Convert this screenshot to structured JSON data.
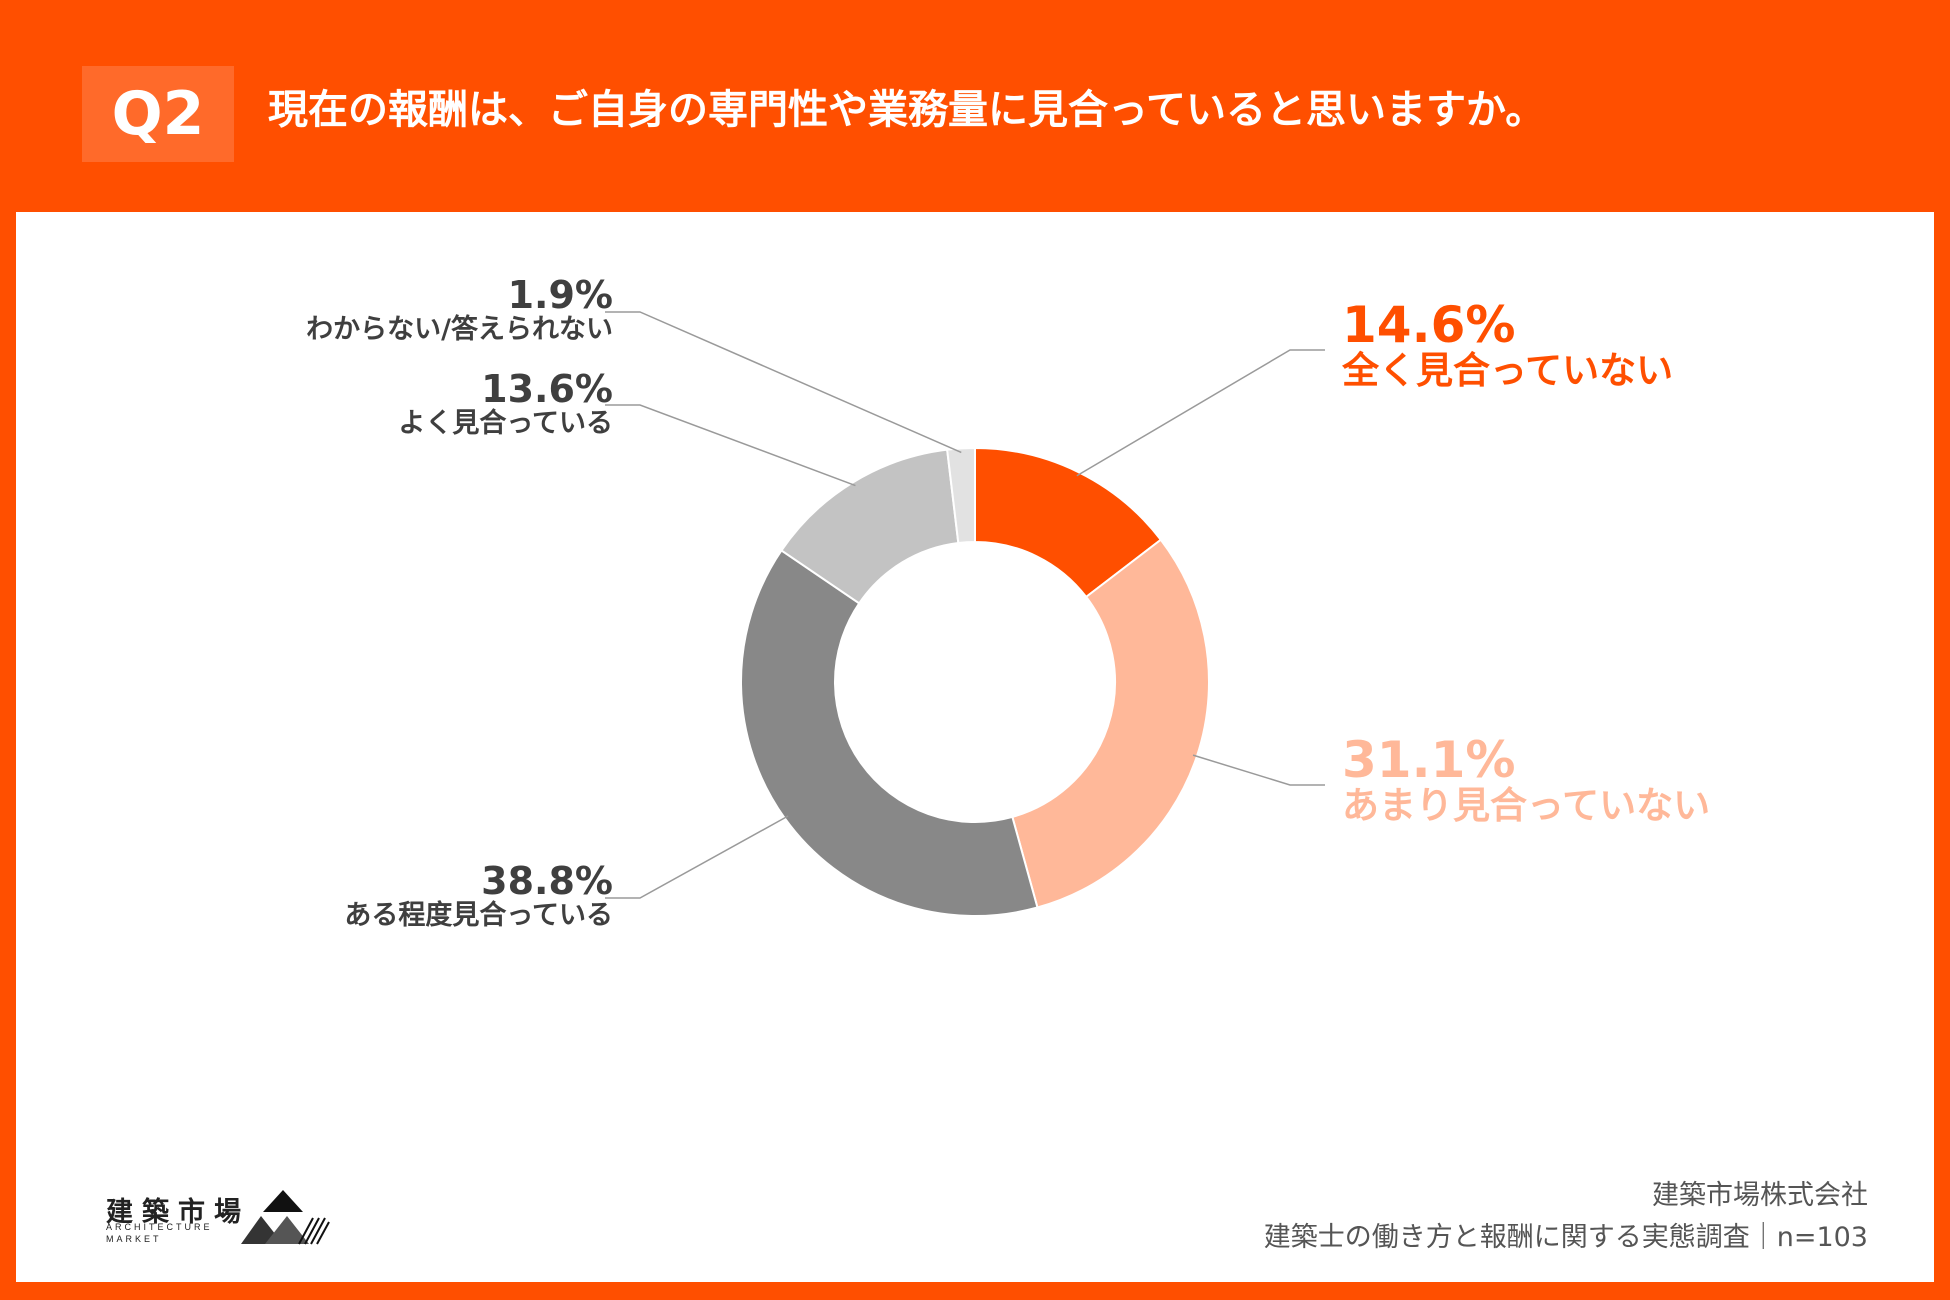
{
  "header": {
    "badge": "Q2",
    "question": "現在の報酬は、ご自身の専門性や業務量に見合っていると思いますか。"
  },
  "chart_data": {
    "type": "pie",
    "donut": true,
    "slices": [
      {
        "pct_label": "14.6%",
        "label": "全く見合っていない",
        "value": 14.6,
        "color": "#ff4f00"
      },
      {
        "pct_label": "31.1%",
        "label": "あまり見合っていない",
        "value": 31.1,
        "color": "#ffb899"
      },
      {
        "pct_label": "38.8%",
        "label": "ある程度見合っている",
        "value": 38.8,
        "color": "#888888"
      },
      {
        "pct_label": "13.6%",
        "label": "よく見合っている",
        "value": 13.6,
        "color": "#c3c3c3"
      },
      {
        "pct_label": "1.9%",
        "label": "わからない/答えられない",
        "value": 1.9,
        "color": "#e2e2e2"
      }
    ]
  },
  "colors": {
    "brand": "#ff4f00",
    "slice_text_strong": "#ff4f00",
    "slice_text_light": "#ffb899",
    "neutral_text": "#3f3f3f"
  },
  "logo": {
    "jp": "建築市場",
    "en_line1": "ARCHITECTURE",
    "en_line2": "MARKET"
  },
  "footer": {
    "company": "建築市場株式会社",
    "survey": "建築士の働き方と報酬に関する実態調査｜n=103"
  }
}
